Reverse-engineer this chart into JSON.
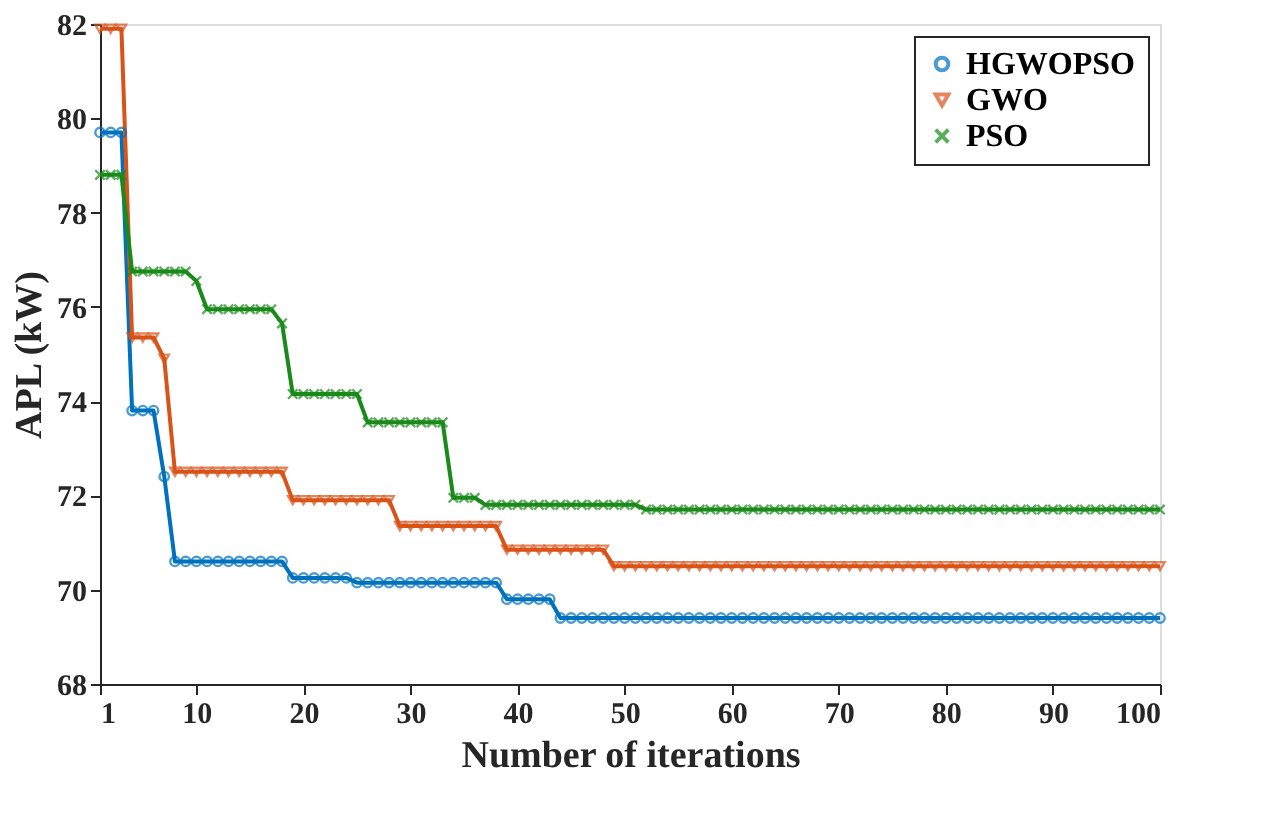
{
  "chart_data": {
    "type": "line",
    "xlabel": "Number of iterations",
    "ylabel": "APL (kW)",
    "x": [
      1,
      2,
      3,
      4,
      5,
      6,
      7,
      8,
      9,
      10,
      11,
      12,
      13,
      14,
      15,
      16,
      17,
      18,
      19,
      20,
      21,
      22,
      23,
      24,
      25,
      26,
      27,
      28,
      29,
      30,
      31,
      32,
      33,
      34,
      35,
      36,
      37,
      38,
      39,
      40,
      41,
      42,
      43,
      44,
      45,
      46,
      47,
      48,
      49,
      50,
      51,
      52,
      53,
      54,
      55,
      56,
      57,
      58,
      59,
      60,
      61,
      62,
      63,
      64,
      65,
      66,
      67,
      68,
      69,
      70,
      71,
      72,
      73,
      74,
      75,
      76,
      77,
      78,
      79,
      80,
      81,
      82,
      83,
      84,
      85,
      86,
      87,
      88,
      89,
      90,
      91,
      92,
      93,
      94,
      95,
      96,
      97,
      98,
      99,
      100
    ],
    "series": [
      {
        "name": "HGWOPSO",
        "color": "#0072bd",
        "marker": "circle",
        "values": [
          79.7,
          79.7,
          79.7,
          73.8,
          73.8,
          73.8,
          72.4,
          70.6,
          70.6,
          70.6,
          70.6,
          70.6,
          70.6,
          70.6,
          70.6,
          70.6,
          70.6,
          70.6,
          70.25,
          70.25,
          70.25,
          70.25,
          70.25,
          70.25,
          70.15,
          70.15,
          70.15,
          70.15,
          70.15,
          70.15,
          70.15,
          70.15,
          70.15,
          70.15,
          70.15,
          70.15,
          70.15,
          70.15,
          69.8,
          69.8,
          69.8,
          69.8,
          69.8,
          69.4,
          69.4,
          69.4,
          69.4,
          69.4,
          69.4,
          69.4,
          69.4,
          69.4,
          69.4,
          69.4,
          69.4,
          69.4,
          69.4,
          69.4,
          69.4,
          69.4,
          69.4,
          69.4,
          69.4,
          69.4,
          69.4,
          69.4,
          69.4,
          69.4,
          69.4,
          69.4,
          69.4,
          69.4,
          69.4,
          69.4,
          69.4,
          69.4,
          69.4,
          69.4,
          69.4,
          69.4,
          69.4,
          69.4,
          69.4,
          69.4,
          69.4,
          69.4,
          69.4,
          69.4,
          69.4,
          69.4,
          69.4,
          69.4,
          69.4,
          69.4,
          69.4,
          69.4,
          69.4,
          69.4,
          69.4,
          69.4
        ]
      },
      {
        "name": "GWO",
        "color": "#d95319",
        "marker": "triangle",
        "values": [
          81.9,
          81.9,
          81.9,
          75.35,
          75.35,
          75.35,
          74.9,
          72.5,
          72.5,
          72.5,
          72.5,
          72.5,
          72.5,
          72.5,
          72.5,
          72.5,
          72.5,
          72.5,
          71.9,
          71.9,
          71.9,
          71.9,
          71.9,
          71.9,
          71.9,
          71.9,
          71.9,
          71.9,
          71.35,
          71.35,
          71.35,
          71.35,
          71.35,
          71.35,
          71.35,
          71.35,
          71.35,
          71.35,
          70.85,
          70.85,
          70.85,
          70.85,
          70.85,
          70.85,
          70.85,
          70.85,
          70.85,
          70.85,
          70.5,
          70.5,
          70.5,
          70.5,
          70.5,
          70.5,
          70.5,
          70.5,
          70.5,
          70.5,
          70.5,
          70.5,
          70.5,
          70.5,
          70.5,
          70.5,
          70.5,
          70.5,
          70.5,
          70.5,
          70.5,
          70.5,
          70.5,
          70.5,
          70.5,
          70.5,
          70.5,
          70.5,
          70.5,
          70.5,
          70.5,
          70.5,
          70.5,
          70.5,
          70.5,
          70.5,
          70.5,
          70.5,
          70.5,
          70.5,
          70.5,
          70.5,
          70.5,
          70.5,
          70.5,
          70.5,
          70.5,
          70.5,
          70.5,
          70.5,
          70.5,
          70.5
        ]
      },
      {
        "name": "PSO",
        "color": "#1a8a1a",
        "marker": "cross",
        "values": [
          78.8,
          78.8,
          78.8,
          76.75,
          76.75,
          76.75,
          76.75,
          76.75,
          76.75,
          76.55,
          75.95,
          75.95,
          75.95,
          75.95,
          75.95,
          75.95,
          75.95,
          75.65,
          74.15,
          74.15,
          74.15,
          74.15,
          74.15,
          74.15,
          74.15,
          73.55,
          73.55,
          73.55,
          73.55,
          73.55,
          73.55,
          73.55,
          73.55,
          71.95,
          71.95,
          71.95,
          71.8,
          71.8,
          71.8,
          71.8,
          71.8,
          71.8,
          71.8,
          71.8,
          71.8,
          71.8,
          71.8,
          71.8,
          71.8,
          71.8,
          71.8,
          71.7,
          71.7,
          71.7,
          71.7,
          71.7,
          71.7,
          71.7,
          71.7,
          71.7,
          71.7,
          71.7,
          71.7,
          71.7,
          71.7,
          71.7,
          71.7,
          71.7,
          71.7,
          71.7,
          71.7,
          71.7,
          71.7,
          71.7,
          71.7,
          71.7,
          71.7,
          71.7,
          71.7,
          71.7,
          71.7,
          71.7,
          71.7,
          71.7,
          71.7,
          71.7,
          71.7,
          71.7,
          71.7,
          71.7,
          71.7,
          71.7,
          71.7,
          71.7,
          71.7,
          71.7,
          71.7,
          71.7,
          71.7,
          71.7
        ]
      }
    ],
    "xlim": [
      1,
      100
    ],
    "xticks": [
      1,
      10,
      20,
      30,
      40,
      50,
      60,
      70,
      80,
      90,
      100
    ],
    "ylim": [
      68,
      82
    ],
    "yticks": [
      68,
      70,
      72,
      74,
      76,
      78,
      80,
      82
    ],
    "grid": false,
    "legend": "top right",
    "line_style": "solid"
  }
}
